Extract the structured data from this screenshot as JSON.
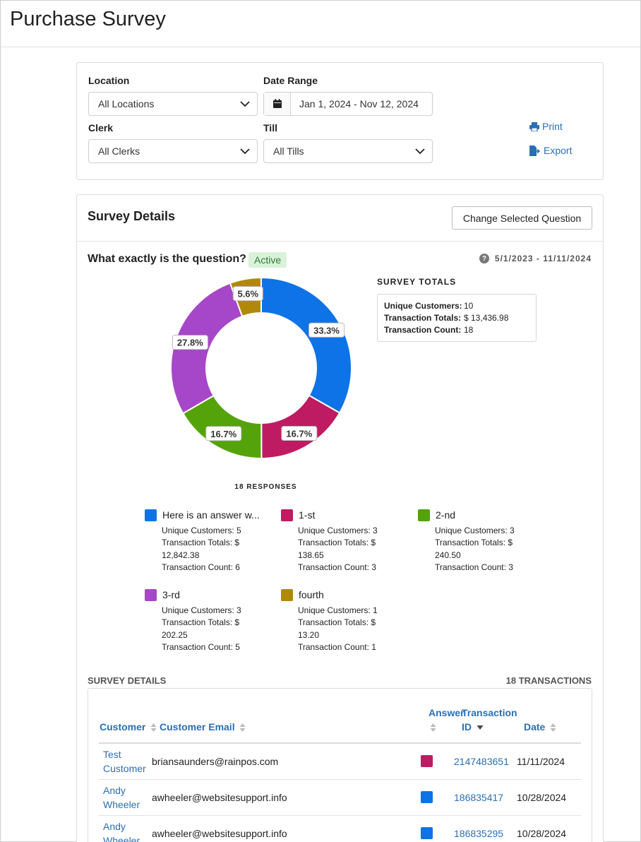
{
  "page": {
    "title": "Purchase Survey"
  },
  "filters": {
    "location_label": "Location",
    "location_value": "All Locations",
    "date_range_label": "Date Range",
    "date_range_value": "Jan 1, 2024 - Nov 12, 2024",
    "clerk_label": "Clerk",
    "clerk_value": "All Clerks",
    "till_label": "Till",
    "till_value": "All Tills",
    "print_label": "Print",
    "export_label": "Export"
  },
  "details": {
    "title": "Survey Details",
    "change_question_label": "Change Selected Question",
    "question": "What exactly is the question?",
    "status_badge": "Active",
    "date_range": "5/1/2023 - 11/11/2024",
    "responses_label": "18 RESPONSES",
    "totals": {
      "title": "SURVEY TOTALS",
      "unique_customers_label": "Unique Customers:",
      "unique_customers": "10",
      "transaction_totals_label": "Transaction Totals:",
      "transaction_totals": "$ 13,436.98",
      "transaction_count_label": "Transaction Count:",
      "transaction_count": "18"
    }
  },
  "chart_data": {
    "type": "pie",
    "donut": true,
    "categories": [
      "Here is an answer w...",
      "1-st",
      "2-nd",
      "3-rd",
      "fourth"
    ],
    "values": [
      33.3,
      16.7,
      16.7,
      27.8,
      5.6
    ],
    "labels": [
      "33.3%",
      "16.7%",
      "16.7%",
      "27.8%",
      "5.6%"
    ],
    "colors": [
      "#0e73e6",
      "#bf1b62",
      "#54a30a",
      "#a646c8",
      "#b0890a"
    ],
    "responses": 18
  },
  "legend": [
    {
      "name": "Here is an answer w...",
      "color": "#0e73e6",
      "stats": "Unique Customers: 5\nTransaction Totals: $ 12,842.38\nTransaction Count: 6"
    },
    {
      "name": "1-st",
      "color": "#bf1b62",
      "stats": "Unique Customers: 3\nTransaction Totals: $ 138.65\nTransaction Count: 3"
    },
    {
      "name": "2-nd",
      "color": "#54a30a",
      "stats": "Unique Customers: 3\nTransaction Totals: $ 240.50\nTransaction Count: 3"
    },
    {
      "name": "3-rd",
      "color": "#a646c8",
      "stats": "Unique Customers: 3\nTransaction Totals: $ 202.25\nTransaction Count: 5"
    },
    {
      "name": "fourth",
      "color": "#b0890a",
      "stats": "Unique Customers: 1\nTransaction Totals: $ 13.20\nTransaction Count: 1"
    }
  ],
  "table": {
    "section_label": "SURVEY DETAILS",
    "count_label": "18 TRANSACTIONS",
    "headers": {
      "customer": "Customer",
      "email": "Customer Email",
      "answer": "Answer",
      "transaction_id": "Transaction ID",
      "date": "Date"
    },
    "rows": [
      {
        "customer": "Test Customer",
        "email": "briansaunders@rainpos.com",
        "answer_color": "#bf1b62",
        "transaction_id": "2147483651",
        "date": "11/11/2024"
      },
      {
        "customer": "Andy Wheeler",
        "email": "awheeler@websitesupport.info",
        "answer_color": "#0e73e6",
        "transaction_id": "186835417",
        "date": "10/28/2024"
      },
      {
        "customer": "Andy Wheeler",
        "email": "awheeler@websitesupport.info",
        "answer_color": "#0e73e6",
        "transaction_id": "186835295",
        "date": "10/28/2024"
      }
    ]
  }
}
